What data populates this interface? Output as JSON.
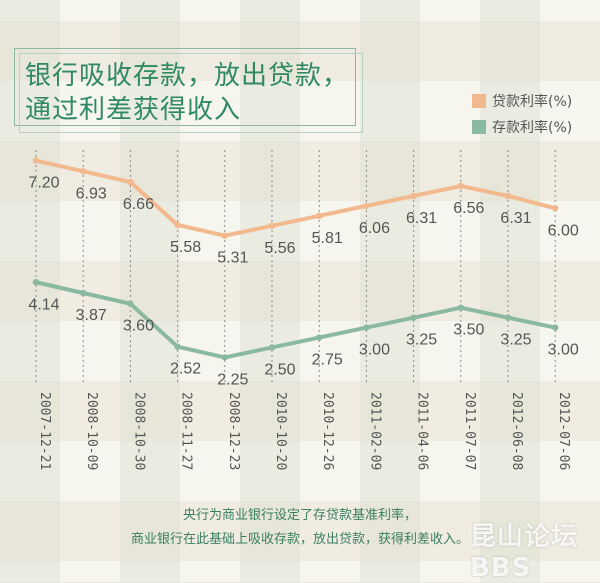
{
  "title": {
    "line1": "银行吸收存款，放出贷款，",
    "line2": "通过利差获得收入"
  },
  "legend": [
    {
      "label": "贷款利率(%)",
      "color": "#f2b98f"
    },
    {
      "label": "存款利率(%)",
      "color": "#8ab9a0"
    }
  ],
  "chart_data": {
    "type": "line",
    "categories": [
      "2007-12-21",
      "2008-10-09",
      "2008-10-30",
      "2008-11-27",
      "2008-12-23",
      "2010-10-20",
      "2010-12-26",
      "2011-02-09",
      "2011-04-06",
      "2011-07-07",
      "2012-06-08",
      "2012-07-06"
    ],
    "series": [
      {
        "name": "贷款利率(%)",
        "color": "#f2b98f",
        "values": [
          7.2,
          6.93,
          6.66,
          5.58,
          5.31,
          5.56,
          5.81,
          6.06,
          6.31,
          6.56,
          6.31,
          6.0
        ],
        "labels": [
          "7.20",
          "6.93",
          "6.66",
          "5.58",
          "5.31",
          "5.56",
          "5.81",
          "6.06",
          "6.31",
          "6.56",
          "6.31",
          "6.00"
        ]
      },
      {
        "name": "存款利率(%)",
        "color": "#8ab9a0",
        "values": [
          4.14,
          3.87,
          3.6,
          2.52,
          2.25,
          2.5,
          2.75,
          3.0,
          3.25,
          3.5,
          3.25,
          3.0
        ],
        "labels": [
          "4.14",
          "3.87",
          "3.60",
          "2.52",
          "2.25",
          "2.50",
          "2.75",
          "3.00",
          "3.25",
          "3.50",
          "3.25",
          "3.00"
        ]
      }
    ],
    "grid": "vertical dashed lines"
  },
  "footer": {
    "line1": "央行为商业银行设定了存贷款基准利率，",
    "line2": "商业银行在此基础上吸收存款，放出贷款，获得利差收入。"
  },
  "watermark": "昆山论坛 BBS"
}
